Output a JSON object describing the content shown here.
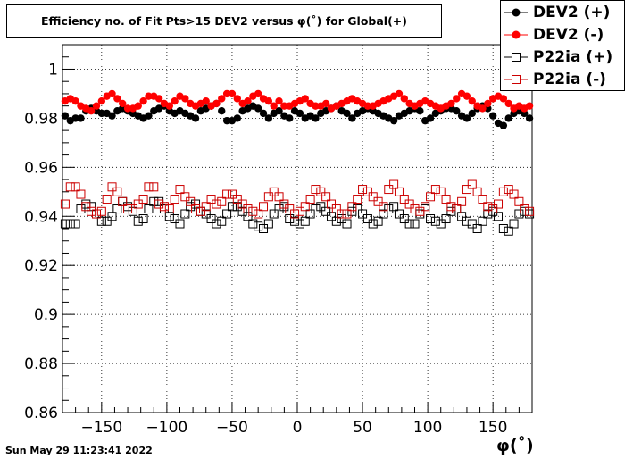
{
  "window": {
    "datestamp": "Sun May 29 11:23:41 2022"
  },
  "chart_data": {
    "type": "scatter",
    "title": "Efficiency no. of Fit Pts>15 DEV2 versus φ(˚) for Global(+)",
    "xlabel": "φ(˚)",
    "ylabel": "",
    "xlim": [
      -180,
      180
    ],
    "ylim": [
      0.86,
      1.01
    ],
    "xticks": [
      -150,
      -100,
      -50,
      0,
      50,
      100,
      150
    ],
    "xtick_labels": [
      "−150",
      "−100",
      "−50",
      "0",
      "50",
      "100",
      "150"
    ],
    "yticks": [
      0.86,
      0.88,
      0.9,
      0.92,
      0.94,
      0.96,
      0.98,
      1
    ],
    "ytick_labels": [
      "0.86",
      "0.88",
      "0.9",
      "0.92",
      "0.94",
      "0.96",
      "0.98",
      "1"
    ],
    "grid": true,
    "legend_position": "top-right",
    "series": [
      {
        "name": "DEV2 (+)",
        "color": "#000000",
        "marker": "filled-circle",
        "x": [
          -178,
          -174,
          -170,
          -166,
          -162,
          -158,
          -154,
          -150,
          -146,
          -142,
          -138,
          -134,
          -130,
          -126,
          -122,
          -118,
          -114,
          -110,
          -106,
          -102,
          -98,
          -94,
          -90,
          -86,
          -82,
          -78,
          -74,
          -70,
          -66,
          -62,
          -58,
          -54,
          -50,
          -46,
          -42,
          -38,
          -34,
          -30,
          -26,
          -22,
          -18,
          -14,
          -10,
          -6,
          -2,
          2,
          6,
          10,
          14,
          18,
          22,
          26,
          30,
          34,
          38,
          42,
          46,
          50,
          54,
          58,
          62,
          66,
          70,
          74,
          78,
          82,
          86,
          90,
          94,
          98,
          102,
          106,
          110,
          114,
          118,
          122,
          126,
          130,
          134,
          138,
          142,
          146,
          150,
          154,
          158,
          162,
          166,
          170,
          174,
          178
        ],
        "values": [
          0.981,
          0.979,
          0.98,
          0.98,
          0.983,
          0.984,
          0.983,
          0.982,
          0.982,
          0.981,
          0.983,
          0.984,
          0.983,
          0.982,
          0.981,
          0.98,
          0.981,
          0.983,
          0.984,
          0.985,
          0.983,
          0.982,
          0.983,
          0.982,
          0.981,
          0.98,
          0.983,
          0.984,
          0.985,
          0.986,
          0.983,
          0.979,
          0.979,
          0.98,
          0.983,
          0.984,
          0.985,
          0.984,
          0.982,
          0.98,
          0.982,
          0.983,
          0.981,
          0.98,
          0.983,
          0.982,
          0.98,
          0.981,
          0.98,
          0.982,
          0.983,
          0.984,
          0.985,
          0.983,
          0.982,
          0.98,
          0.982,
          0.983,
          0.984,
          0.983,
          0.982,
          0.981,
          0.98,
          0.979,
          0.981,
          0.982,
          0.983,
          0.984,
          0.983,
          0.979,
          0.98,
          0.982,
          0.983,
          0.984,
          0.984,
          0.983,
          0.981,
          0.98,
          0.982,
          0.984,
          0.985,
          0.984,
          0.981,
          0.978,
          0.977,
          0.98,
          0.982,
          0.983,
          0.982,
          0.98
        ]
      },
      {
        "name": "DEV2 (-)",
        "color": "#ff0000",
        "marker": "filled-circle",
        "x": [
          -178,
          -174,
          -170,
          -166,
          -162,
          -158,
          -154,
          -150,
          -146,
          -142,
          -138,
          -134,
          -130,
          -126,
          -122,
          -118,
          -114,
          -110,
          -106,
          -102,
          -98,
          -94,
          -90,
          -86,
          -82,
          -78,
          -74,
          -70,
          -66,
          -62,
          -58,
          -54,
          -50,
          -46,
          -42,
          -38,
          -34,
          -30,
          -26,
          -22,
          -18,
          -14,
          -10,
          -6,
          -2,
          2,
          6,
          10,
          14,
          18,
          22,
          26,
          30,
          34,
          38,
          42,
          46,
          50,
          54,
          58,
          62,
          66,
          70,
          74,
          78,
          82,
          86,
          90,
          94,
          98,
          102,
          106,
          110,
          114,
          118,
          122,
          126,
          130,
          134,
          138,
          142,
          146,
          150,
          154,
          158,
          162,
          166,
          170,
          174,
          178
        ],
        "values": [
          0.987,
          0.988,
          0.987,
          0.985,
          0.984,
          0.983,
          0.985,
          0.987,
          0.989,
          0.99,
          0.988,
          0.986,
          0.984,
          0.984,
          0.985,
          0.987,
          0.989,
          0.989,
          0.988,
          0.986,
          0.985,
          0.987,
          0.989,
          0.988,
          0.986,
          0.985,
          0.986,
          0.987,
          0.985,
          0.986,
          0.988,
          0.99,
          0.99,
          0.988,
          0.986,
          0.987,
          0.989,
          0.99,
          0.988,
          0.987,
          0.985,
          0.987,
          0.985,
          0.985,
          0.986,
          0.987,
          0.988,
          0.986,
          0.985,
          0.985,
          0.986,
          0.984,
          0.985,
          0.986,
          0.987,
          0.988,
          0.987,
          0.986,
          0.985,
          0.985,
          0.986,
          0.987,
          0.988,
          0.989,
          0.99,
          0.988,
          0.986,
          0.985,
          0.986,
          0.987,
          0.986,
          0.985,
          0.984,
          0.985,
          0.986,
          0.988,
          0.99,
          0.989,
          0.987,
          0.985,
          0.984,
          0.986,
          0.988,
          0.989,
          0.988,
          0.986,
          0.984,
          0.985,
          0.984,
          0.985
        ]
      },
      {
        "name": "P22ia (+)",
        "color": "#000000",
        "marker": "open-square",
        "x": [
          -178,
          -174,
          -170,
          -166,
          -162,
          -158,
          -154,
          -150,
          -146,
          -142,
          -138,
          -134,
          -130,
          -126,
          -122,
          -118,
          -114,
          -110,
          -106,
          -102,
          -98,
          -94,
          -90,
          -86,
          -82,
          -78,
          -74,
          -70,
          -66,
          -62,
          -58,
          -54,
          -50,
          -46,
          -42,
          -38,
          -34,
          -30,
          -26,
          -22,
          -18,
          -14,
          -10,
          -6,
          -2,
          2,
          6,
          10,
          14,
          18,
          22,
          26,
          30,
          34,
          38,
          42,
          46,
          50,
          54,
          58,
          62,
          66,
          70,
          74,
          78,
          82,
          86,
          90,
          94,
          98,
          102,
          106,
          110,
          114,
          118,
          122,
          126,
          130,
          134,
          138,
          142,
          146,
          150,
          154,
          158,
          162,
          166,
          170,
          174,
          178
        ],
        "values": [
          0.937,
          0.937,
          0.937,
          0.943,
          0.945,
          0.944,
          0.941,
          0.938,
          0.938,
          0.94,
          0.943,
          0.946,
          0.944,
          0.942,
          0.938,
          0.939,
          0.943,
          0.946,
          0.946,
          0.943,
          0.94,
          0.939,
          0.937,
          0.941,
          0.944,
          0.945,
          0.942,
          0.941,
          0.939,
          0.937,
          0.938,
          0.941,
          0.944,
          0.944,
          0.942,
          0.94,
          0.937,
          0.936,
          0.935,
          0.937,
          0.941,
          0.943,
          0.944,
          0.939,
          0.938,
          0.937,
          0.938,
          0.941,
          0.943,
          0.944,
          0.942,
          0.94,
          0.938,
          0.939,
          0.937,
          0.942,
          0.943,
          0.941,
          0.939,
          0.937,
          0.938,
          0.941,
          0.943,
          0.944,
          0.941,
          0.939,
          0.937,
          0.937,
          0.941,
          0.943,
          0.939,
          0.938,
          0.937,
          0.939,
          0.942,
          0.943,
          0.94,
          0.938,
          0.937,
          0.935,
          0.938,
          0.941,
          0.942,
          0.94,
          0.935,
          0.934,
          0.937,
          0.941,
          0.942,
          0.941
        ]
      },
      {
        "name": "P22ia (-)",
        "color": "#cc0000",
        "marker": "open-square",
        "x": [
          -178,
          -174,
          -170,
          -166,
          -162,
          -158,
          -154,
          -150,
          -146,
          -142,
          -138,
          -134,
          -130,
          -126,
          -122,
          -118,
          -114,
          -110,
          -106,
          -102,
          -98,
          -94,
          -90,
          -86,
          -82,
          -78,
          -74,
          -70,
          -66,
          -62,
          -58,
          -54,
          -50,
          -46,
          -42,
          -38,
          -34,
          -30,
          -26,
          -22,
          -18,
          -14,
          -10,
          -6,
          -2,
          2,
          6,
          10,
          14,
          18,
          22,
          26,
          30,
          34,
          38,
          42,
          46,
          50,
          54,
          58,
          62,
          66,
          70,
          74,
          78,
          82,
          86,
          90,
          94,
          98,
          102,
          106,
          110,
          114,
          118,
          122,
          126,
          130,
          134,
          138,
          142,
          146,
          150,
          154,
          158,
          162,
          166,
          170,
          174,
          178
        ],
        "values": [
          0.945,
          0.952,
          0.952,
          0.949,
          0.944,
          0.942,
          0.941,
          0.942,
          0.947,
          0.952,
          0.95,
          0.946,
          0.943,
          0.943,
          0.945,
          0.947,
          0.952,
          0.952,
          0.945,
          0.944,
          0.943,
          0.947,
          0.951,
          0.948,
          0.946,
          0.943,
          0.942,
          0.944,
          0.947,
          0.945,
          0.946,
          0.949,
          0.949,
          0.947,
          0.945,
          0.943,
          0.942,
          0.941,
          0.944,
          0.948,
          0.95,
          0.948,
          0.945,
          0.943,
          0.941,
          0.942,
          0.944,
          0.947,
          0.951,
          0.95,
          0.948,
          0.945,
          0.943,
          0.941,
          0.941,
          0.944,
          0.947,
          0.951,
          0.95,
          0.948,
          0.946,
          0.944,
          0.951,
          0.953,
          0.95,
          0.947,
          0.945,
          0.943,
          0.942,
          0.944,
          0.948,
          0.951,
          0.95,
          0.947,
          0.944,
          0.943,
          0.946,
          0.951,
          0.953,
          0.95,
          0.947,
          0.944,
          0.943,
          0.945,
          0.95,
          0.951,
          0.949,
          0.946,
          0.943,
          0.942
        ]
      }
    ]
  }
}
